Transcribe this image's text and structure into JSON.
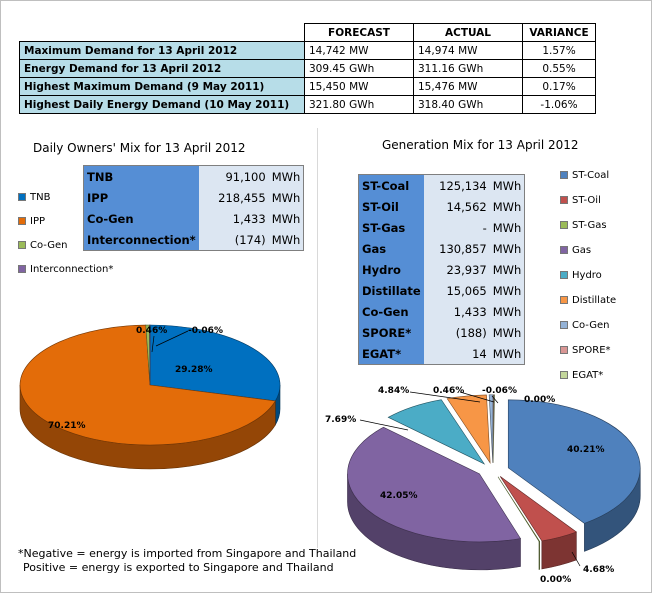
{
  "summary": {
    "headers": [
      "FORECAST",
      "ACTUAL",
      "VARIANCE"
    ],
    "rows": [
      {
        "label": "Maximum Demand for 13 April 2012",
        "forecast": "14,742  MW",
        "actual": "14,974  MW",
        "variance": "1.57%"
      },
      {
        "label": "Energy Demand for 13 April 2012",
        "forecast": "309.45  GWh",
        "actual": "311.16  GWh",
        "variance": "0.55%"
      },
      {
        "label": "Highest Maximum Demand (9 May 2011)",
        "forecast": "15,450  MW",
        "actual": "15,476  MW",
        "variance": "0.17%"
      },
      {
        "label": "Highest Daily Energy Demand (10 May 2011)",
        "forecast": "321.80  GWh",
        "actual": "318.40  GWh",
        "variance": "-1.06%"
      }
    ]
  },
  "owners": {
    "title": "Daily Owners' Mix for 13 April 2012",
    "table": [
      {
        "name": "TNB",
        "value": "91,100",
        "unit": "MWh"
      },
      {
        "name": "IPP",
        "value": "218,455",
        "unit": "MWh"
      },
      {
        "name": "Co-Gen",
        "value": "1,433",
        "unit": "MWh"
      },
      {
        "name": "Interconnection*",
        "value": "(174)",
        "unit": "MWh"
      }
    ]
  },
  "generation": {
    "title": "Generation Mix for 13 April 2012",
    "table": [
      {
        "name": "ST-Coal",
        "value": "125,134",
        "unit": "MWh"
      },
      {
        "name": "ST-Oil",
        "value": "14,562",
        "unit": "MWh"
      },
      {
        "name": "ST-Gas",
        "value": "-",
        "unit": "MWh"
      },
      {
        "name": "Gas",
        "value": "130,857",
        "unit": "MWh"
      },
      {
        "name": "Hydro",
        "value": "23,937",
        "unit": "MWh"
      },
      {
        "name": "Distillate",
        "value": "15,065",
        "unit": "MWh"
      },
      {
        "name": "Co-Gen",
        "value": "1,433",
        "unit": "MWh"
      },
      {
        "name": "SPORE*",
        "value": "(188)",
        "unit": "MWh"
      },
      {
        "name": "EGAT*",
        "value": "14",
        "unit": "MWh"
      }
    ]
  },
  "note": {
    "line1": "*Negative = energy is imported from Singapore and Thailand",
    "line2": "Positive = energy is exported to Singapore and Thailand"
  },
  "chart_data": [
    {
      "type": "pie",
      "title": "Daily Owners' Mix for 13 April 2012",
      "legend_position": "left",
      "slices": [
        {
          "name": "TNB",
          "value": 29.28,
          "label": "29.28%",
          "color": "#0070c0"
        },
        {
          "name": "IPP",
          "value": 70.21,
          "label": "70.21%",
          "color": "#e36c09"
        },
        {
          "name": "Co-Gen",
          "value": 0.46,
          "label": "0.46%",
          "color": "#9bbb59"
        },
        {
          "name": "Interconnection*",
          "value": -0.06,
          "label": "-0.06%",
          "color": "#8064a2"
        }
      ]
    },
    {
      "type": "pie",
      "title": "Generation Mix for 13 April 2012",
      "legend_position": "right",
      "exploded": true,
      "slices": [
        {
          "name": "ST-Coal",
          "value": 40.21,
          "label": "40.21%",
          "color": "#4f81bd"
        },
        {
          "name": "ST-Oil",
          "value": 4.68,
          "label": "4.68%",
          "color": "#c0504d"
        },
        {
          "name": "ST-Gas",
          "value": 0.0,
          "label": "0.00%",
          "color": "#9bbb59"
        },
        {
          "name": "Gas",
          "value": 42.05,
          "label": "42.05%",
          "color": "#8064a2"
        },
        {
          "name": "Hydro",
          "value": 7.69,
          "label": "7.69%",
          "color": "#4bacc6"
        },
        {
          "name": "Distillate",
          "value": 4.84,
          "label": "4.84%",
          "color": "#f79646"
        },
        {
          "name": "Co-Gen",
          "value": 0.46,
          "label": "0.46%",
          "color": "#95b3d7"
        },
        {
          "name": "SPORE*",
          "value": -0.06,
          "label": "-0.06%",
          "color": "#d99694"
        },
        {
          "name": "EGAT*",
          "value": 0.0,
          "label": "0.00%",
          "color": "#c3d69b"
        }
      ]
    }
  ]
}
